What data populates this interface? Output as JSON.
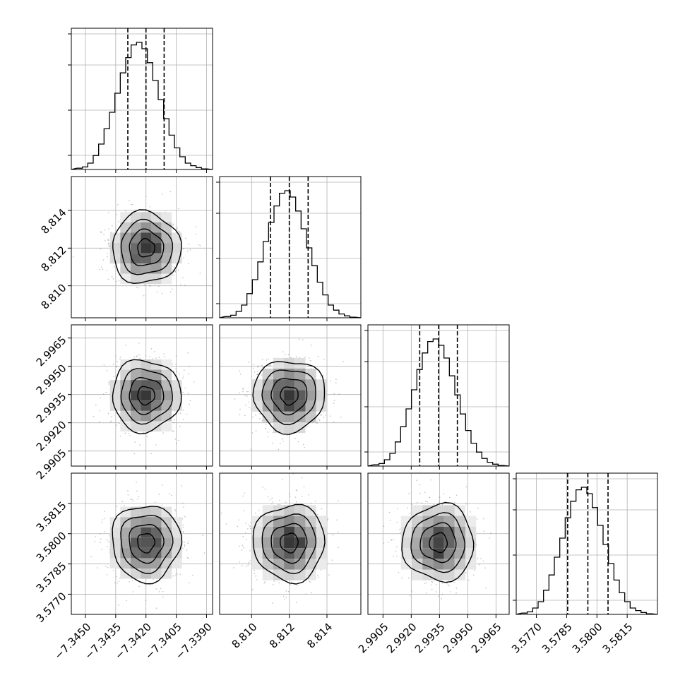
{
  "figure": {
    "params": [
      {
        "index": 0,
        "center": -7.342,
        "sigma": 0.00085,
        "quantiles": [
          -7.3429,
          -7.342,
          -7.3411
        ],
        "axis_lim": [
          -7.3457,
          -7.3387
        ],
        "ticks": [
          "-7.3450",
          "-7.3435",
          "-7.3420",
          "-7.3405",
          "-7.3390"
        ],
        "tick_values": [
          -7.345,
          -7.3435,
          -7.342,
          -7.3405,
          -7.339
        ]
      },
      {
        "index": 1,
        "center": 8.812,
        "sigma": 0.00095,
        "quantiles": [
          8.811,
          8.812,
          8.813
        ],
        "axis_lim": [
          8.8083,
          8.8158
        ],
        "ticks": [
          "8.810",
          "8.812",
          "8.814"
        ],
        "tick_values": [
          8.81,
          8.812,
          8.814
        ]
      },
      {
        "index": 2,
        "center": 2.99345,
        "sigma": 0.00095,
        "quantiles": [
          2.99245,
          2.99345,
          2.99445
        ],
        "axis_lim": [
          2.9897,
          2.9972
        ],
        "ticks": [
          "2.9905",
          "2.9920",
          "2.9935",
          "2.9950",
          "2.9965"
        ],
        "tick_values": [
          2.9905,
          2.992,
          2.9935,
          2.995,
          2.9965
        ]
      },
      {
        "index": 3,
        "center": 3.57955,
        "sigma": 0.00095,
        "quantiles": [
          3.57855,
          3.57955,
          3.58055
        ],
        "axis_lim": [
          3.576,
          3.583
        ],
        "ticks": [
          "3.5770",
          "3.5785",
          "3.5800",
          "3.5815"
        ],
        "tick_values": [
          3.577,
          3.5785,
          3.58,
          3.5815
        ]
      }
    ],
    "colors": {
      "line": "#000000",
      "grid": "#b0b0b0",
      "points": "#8c8c8c"
    }
  },
  "chart_data": {
    "type": "corner",
    "title": "",
    "description_of_panels": "4x4 lower-triangular corner plot: 1D histograms on diagonal with 16/50/84% quantile dashed lines; 2D density contours with scatter below diagonal",
    "x_tick_labels": {
      "col0": [
        "−7.3450",
        "−7.3435",
        "−7.3420",
        "−7.3405",
        "−7.3390"
      ],
      "col1": [
        "8.810",
        "8.812",
        "8.814"
      ],
      "col2": [
        "2.9905",
        "2.9920",
        "2.9935",
        "2.9950",
        "2.9965"
      ],
      "col3": [
        "3.5770",
        "3.5785",
        "3.5800",
        "3.5815"
      ]
    },
    "y_tick_labels": {
      "row1": [
        "8.814",
        "8.812",
        "8.810"
      ],
      "row2": [
        "2.9965",
        "2.9950",
        "2.9935",
        "2.9920",
        "2.9905"
      ],
      "row3": [
        "3.5815",
        "3.5800",
        "3.5785",
        "3.5770"
      ]
    },
    "histograms": [
      {
        "param": 0,
        "bin_heights": [
          0.01,
          0.02,
          0.05,
          0.11,
          0.2,
          0.32,
          0.45,
          0.6,
          0.76,
          0.88,
          0.98,
          1.0,
          0.95,
          0.84,
          0.7,
          0.55,
          0.4,
          0.27,
          0.17,
          0.1,
          0.05,
          0.03,
          0.015,
          0.005
        ],
        "quantiles": [
          -7.3429,
          -7.342,
          -7.3411
        ]
      },
      {
        "param": 1,
        "bin_heights": [
          0.01,
          0.02,
          0.05,
          0.1,
          0.19,
          0.3,
          0.44,
          0.6,
          0.75,
          0.88,
          0.98,
          1.0,
          0.95,
          0.84,
          0.7,
          0.55,
          0.41,
          0.28,
          0.18,
          0.1,
          0.06,
          0.03,
          0.015,
          0.005
        ],
        "quantiles": [
          8.811,
          8.812,
          8.813
        ]
      },
      {
        "param": 2,
        "bin_heights": [
          0.01,
          0.02,
          0.05,
          0.1,
          0.19,
          0.31,
          0.45,
          0.6,
          0.76,
          0.89,
          0.98,
          1.0,
          0.95,
          0.85,
          0.71,
          0.56,
          0.41,
          0.28,
          0.18,
          0.11,
          0.06,
          0.03,
          0.015,
          0.005
        ],
        "quantiles": [
          2.99245,
          2.99345,
          2.99445
        ]
      },
      {
        "param": 3,
        "bin_heights": [
          0.01,
          0.02,
          0.05,
          0.1,
          0.19,
          0.31,
          0.45,
          0.6,
          0.76,
          0.89,
          0.98,
          1.0,
          0.95,
          0.84,
          0.7,
          0.55,
          0.4,
          0.27,
          0.17,
          0.1,
          0.05,
          0.03,
          0.015,
          0.005
        ],
        "quantiles": [
          3.57855,
          3.57955,
          3.58055
        ]
      }
    ],
    "contours": "2D Gaussian density with levels at 0.5, 1, 1.5, 2 sigma; black contour lines with grayscale filled bins"
  }
}
